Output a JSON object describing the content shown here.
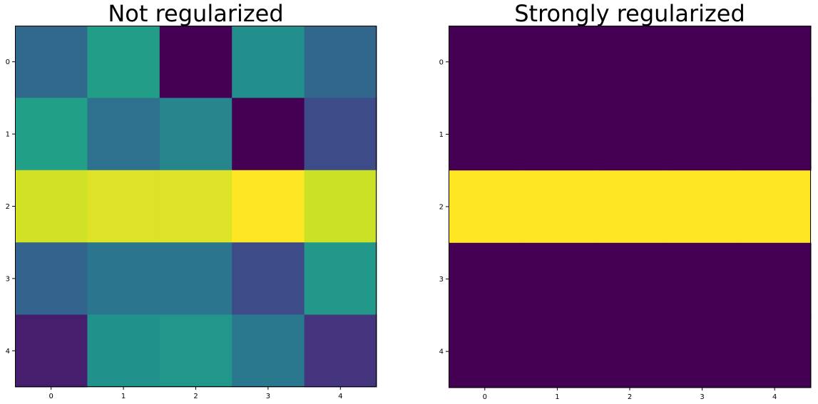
{
  "chart_data": [
    {
      "type": "heatmap",
      "title": "Not regularized",
      "xlabel": "",
      "ylabel": "",
      "colormap": "viridis",
      "x_ticks": [
        "0",
        "1",
        "2",
        "3",
        "4"
      ],
      "y_ticks": [
        "0",
        "1",
        "2",
        "3",
        "4"
      ],
      "xlim": [
        -0.5,
        4.5
      ],
      "ylim": [
        4.5,
        -0.5
      ],
      "grid": false,
      "values": [
        [
          0.34,
          0.55,
          0.0,
          0.49,
          0.33
        ],
        [
          0.56,
          0.37,
          0.45,
          0.0,
          0.23
        ],
        [
          0.93,
          0.95,
          0.95,
          1.0,
          0.92
        ],
        [
          0.32,
          0.39,
          0.39,
          0.23,
          0.53
        ],
        [
          0.08,
          0.5,
          0.52,
          0.4,
          0.15
        ]
      ]
    },
    {
      "type": "heatmap",
      "title": "Strongly regularized",
      "xlabel": "",
      "ylabel": "",
      "colormap": "viridis",
      "x_ticks": [
        "0",
        "1",
        "2",
        "3",
        "4"
      ],
      "y_ticks": [
        "0",
        "1",
        "2",
        "3",
        "4"
      ],
      "xlim": [
        -0.5,
        4.5
      ],
      "ylim": [
        4.5,
        -0.5
      ],
      "grid": false,
      "values": [
        [
          0,
          0,
          0,
          0,
          0
        ],
        [
          0,
          0,
          0,
          0,
          0
        ],
        [
          1,
          1,
          1,
          1,
          1
        ],
        [
          0,
          0,
          0,
          0,
          0
        ],
        [
          0,
          0,
          0,
          0,
          0
        ]
      ]
    }
  ]
}
